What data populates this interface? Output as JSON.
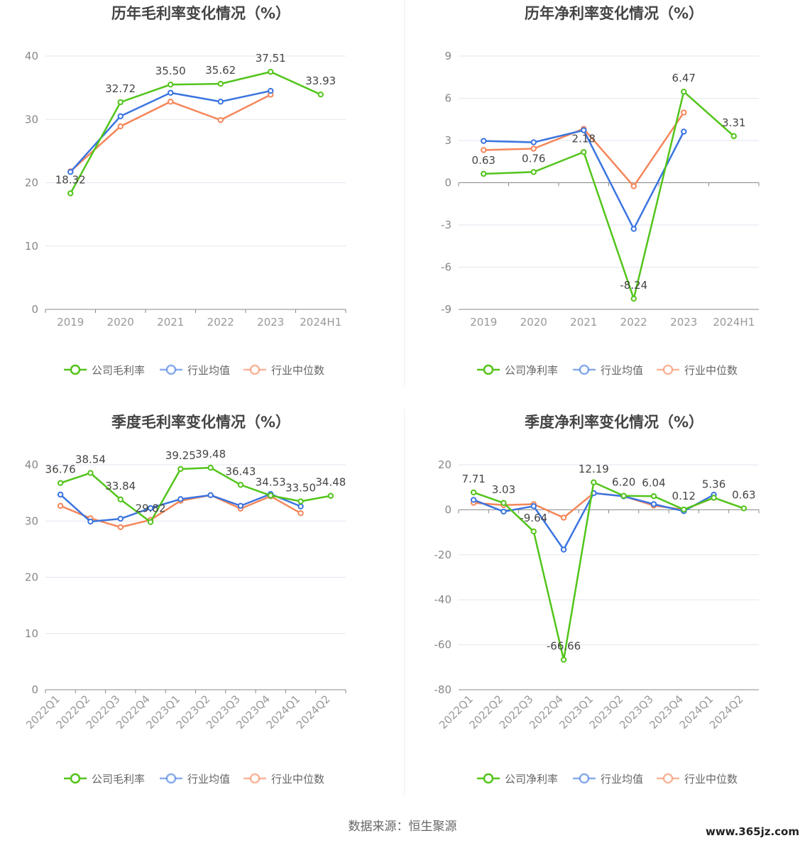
{
  "colors": {
    "company": "#52c41a",
    "avg": "#3b74e0",
    "median": "#f5865a"
  },
  "footer": "数据来源：恒生聚源",
  "watermark": "www.365jz.com",
  "chart_data": [
    {
      "type": "line",
      "title": "历年毛利率变化情况（%）",
      "categories": [
        "2019",
        "2020",
        "2021",
        "2022",
        "2023",
        "2024H1"
      ],
      "ylim": [
        0,
        40
      ],
      "yticks": [
        0,
        10,
        20,
        30,
        40
      ],
      "rotate_x": false,
      "series": [
        {
          "name": "公司毛利率",
          "key": "company",
          "values": [
            18.32,
            32.72,
            35.5,
            35.62,
            37.51,
            33.93
          ],
          "labels": true
        },
        {
          "name": "行业均值",
          "key": "avg",
          "values": [
            21.7,
            30.5,
            34.2,
            32.8,
            34.5,
            null
          ]
        },
        {
          "name": "行业中位数",
          "key": "median",
          "values": [
            21.8,
            28.9,
            32.8,
            29.9,
            33.9,
            null
          ]
        }
      ]
    },
    {
      "type": "line",
      "title": "历年净利率变化情况（%）",
      "categories": [
        "2019",
        "2020",
        "2021",
        "2022",
        "2023",
        "2024H1"
      ],
      "ylim": [
        -9,
        9
      ],
      "yticks": [
        -9,
        -6,
        -3,
        0,
        3,
        6,
        9
      ],
      "rotate_x": false,
      "series": [
        {
          "name": "公司净利率",
          "key": "company",
          "values": [
            0.63,
            0.76,
            2.18,
            -8.24,
            6.47,
            3.31
          ],
          "labels": true
        },
        {
          "name": "行业均值",
          "key": "avg",
          "values": [
            2.97,
            2.87,
            3.73,
            -3.28,
            3.63,
            null
          ]
        },
        {
          "name": "行业中位数",
          "key": "median",
          "values": [
            2.32,
            2.42,
            3.83,
            -0.25,
            4.99,
            null
          ]
        }
      ]
    },
    {
      "type": "line",
      "title": "季度毛利率变化情况（%）",
      "categories": [
        "2022Q1",
        "2022Q2",
        "2022Q3",
        "2022Q4",
        "2023Q1",
        "2023Q2",
        "2023Q3",
        "2023Q4",
        "2024Q1",
        "2024Q2"
      ],
      "ylim": [
        0,
        40
      ],
      "yticks": [
        0,
        10,
        20,
        30,
        40
      ],
      "rotate_x": true,
      "series": [
        {
          "name": "公司毛利率",
          "key": "company",
          "values": [
            36.76,
            38.54,
            33.84,
            29.82,
            39.25,
            39.48,
            36.43,
            34.53,
            33.5,
            34.48
          ],
          "labels": true
        },
        {
          "name": "行业均值",
          "key": "avg",
          "values": [
            34.7,
            29.9,
            30.4,
            32.3,
            33.9,
            34.6,
            32.7,
            34.8,
            32.6,
            null
          ]
        },
        {
          "name": "行业中位数",
          "key": "median",
          "values": [
            32.7,
            30.5,
            28.9,
            30.2,
            33.6,
            34.6,
            32.2,
            34.4,
            31.4,
            null
          ]
        }
      ]
    },
    {
      "type": "line",
      "title": "季度净利率变化情况（%）",
      "categories": [
        "2022Q1",
        "2022Q2",
        "2022Q3",
        "2022Q4",
        "2023Q1",
        "2023Q2",
        "2023Q3",
        "2023Q4",
        "2024Q1",
        "2024Q2"
      ],
      "ylim": [
        -80,
        20
      ],
      "yticks": [
        -80,
        -60,
        -40,
        -20,
        0,
        20
      ],
      "rotate_x": true,
      "series": [
        {
          "name": "公司净利率",
          "key": "company",
          "values": [
            7.71,
            3.03,
            -9.64,
            -66.66,
            12.19,
            6.2,
            6.04,
            0.12,
            5.36,
            0.63
          ],
          "labels": true
        },
        {
          "name": "行业均值",
          "key": "avg",
          "values": [
            4.4,
            -0.8,
            1.6,
            -17.7,
            7.4,
            6.0,
            2.5,
            -0.6,
            6.7,
            null
          ]
        },
        {
          "name": "行业中位数",
          "key": "median",
          "values": [
            3.1,
            2.1,
            2.5,
            -3.5,
            7.4,
            6.0,
            1.9,
            0.0,
            5.3,
            null
          ]
        }
      ]
    }
  ]
}
